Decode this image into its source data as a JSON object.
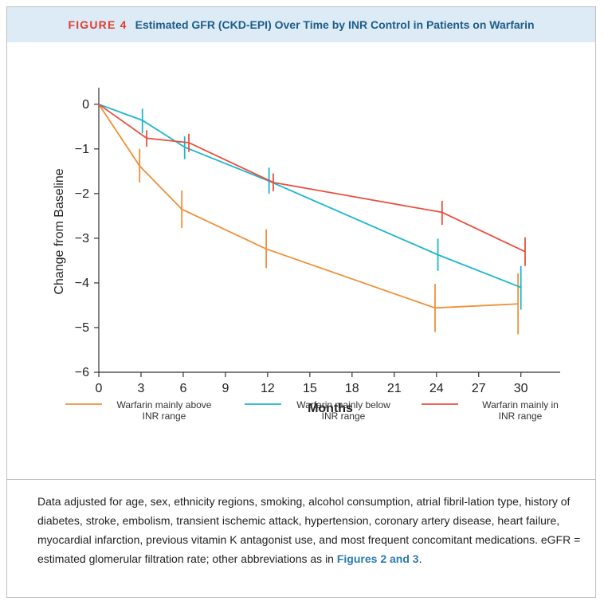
{
  "header": {
    "figure_label": "FIGURE 4",
    "figure_title": "Estimated GFR (CKD-EPI) Over Time by INR Control in Patients on Warfarin"
  },
  "chart_data": {
    "type": "line",
    "xlabel": "Months",
    "ylabel": "Change from Baseline",
    "xlim": [
      0,
      32
    ],
    "ylim": [
      -6,
      0.3
    ],
    "xticks": [
      0,
      3,
      6,
      9,
      12,
      15,
      18,
      21,
      24,
      27,
      30
    ],
    "yticks": [
      0,
      -1,
      -2,
      -3,
      -4,
      -5,
      -6
    ],
    "ytick_labels": [
      "0",
      "−1",
      "−2",
      "−3",
      "−4",
      "−5",
      "−6"
    ],
    "legend_position": "bottom",
    "series": [
      {
        "name": "Warfarin mainly above\nINR range",
        "color": "#f0903a",
        "points": [
          {
            "x": 0,
            "y": 0
          },
          {
            "x": 2.9,
            "y": -1.38,
            "ci": [
              -1.75,
              -1.0
            ]
          },
          {
            "x": 5.9,
            "y": -2.35,
            "ci": [
              -2.77,
              -1.93
            ]
          },
          {
            "x": 11.9,
            "y": -3.24,
            "ci": [
              -3.67,
              -2.8
            ]
          },
          {
            "x": 23.9,
            "y": -4.56,
            "ci": [
              -5.1,
              -4.02
            ]
          },
          {
            "x": 29.8,
            "y": -4.47,
            "ci": [
              -5.15,
              -3.78
            ]
          }
        ]
      },
      {
        "name": "Warfarin mainly below\nINR range",
        "color": "#1cb6cd",
        "points": [
          {
            "x": 0,
            "y": 0
          },
          {
            "x": 3.1,
            "y": -0.36,
            "ci": [
              -0.65,
              -0.1
            ]
          },
          {
            "x": 6.1,
            "y": -0.96,
            "ci": [
              -1.23,
              -0.72
            ]
          },
          {
            "x": 12.1,
            "y": -1.72,
            "ci": [
              -2.0,
              -1.42
            ]
          },
          {
            "x": 24.1,
            "y": -3.37,
            "ci": [
              -3.73,
              -3.01
            ]
          },
          {
            "x": 30.0,
            "y": -4.1,
            "ci": [
              -4.6,
              -3.62
            ]
          }
        ]
      },
      {
        "name": "Warfarin mainly in\nINR range",
        "color": "#e8503f",
        "points": [
          {
            "x": 0,
            "y": 0
          },
          {
            "x": 3.4,
            "y": -0.76,
            "ci": [
              -0.95,
              -0.58
            ]
          },
          {
            "x": 6.4,
            "y": -0.86,
            "ci": [
              -1.07,
              -0.66
            ]
          },
          {
            "x": 12.4,
            "y": -1.75,
            "ci": [
              -1.95,
              -1.55
            ]
          },
          {
            "x": 24.4,
            "y": -2.42,
            "ci": [
              -2.7,
              -2.16
            ]
          },
          {
            "x": 30.3,
            "y": -3.3,
            "ci": [
              -3.62,
              -2.98
            ]
          }
        ]
      }
    ]
  },
  "caption": {
    "text": "Data adjusted for age, sex, ethnicity regions, smoking, alcohol consumption, atrial fibril-lation type, history of diabetes, stroke, embolism, transient ischemic attack, hypertension, coronary artery disease, heart failure, myocardial infarction, previous vitamin K antagonist use, and most frequent concomitant medications. eGFR = estimated glomerular filtration rate; other abbreviations as in ",
    "link_text": "Figures 2 and 3",
    "end": "."
  }
}
